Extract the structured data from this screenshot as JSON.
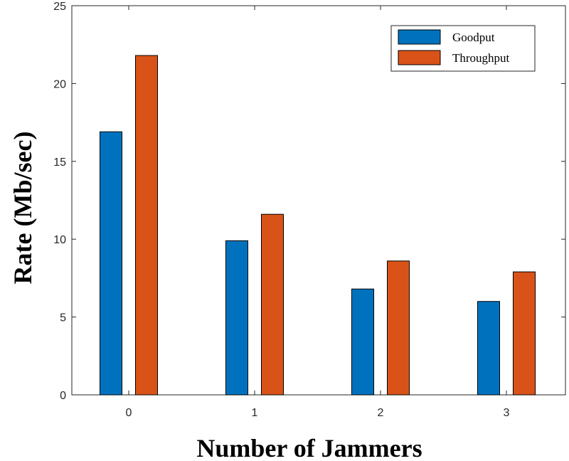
{
  "chart_data": {
    "type": "bar",
    "title": "",
    "xlabel": "Number of Jammers",
    "ylabel": "Rate (Mb/sec)",
    "categories": [
      "0",
      "1",
      "2",
      "3"
    ],
    "series": [
      {
        "name": "Goodput",
        "color": "#0072BD",
        "values": [
          16.9,
          9.9,
          6.8,
          6.0
        ]
      },
      {
        "name": "Throughput",
        "color": "#D95319",
        "values": [
          21.8,
          11.6,
          8.6,
          7.9
        ]
      }
    ],
    "ylim": [
      0,
      25
    ],
    "yticks": [
      0,
      5,
      10,
      15,
      20,
      25
    ],
    "grid": false,
    "legend_position": "top-right"
  }
}
